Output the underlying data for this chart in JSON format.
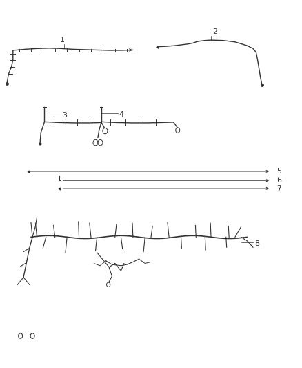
{
  "bg_color": "#ffffff",
  "label_color": "#333333",
  "line_color": "#333333",
  "figsize": [
    4.38,
    5.33
  ],
  "dpi": 100,
  "label_fontsize": 8,
  "wire_lw": 1.0,
  "tick_lw": 0.7,
  "tick_size": 0.008
}
